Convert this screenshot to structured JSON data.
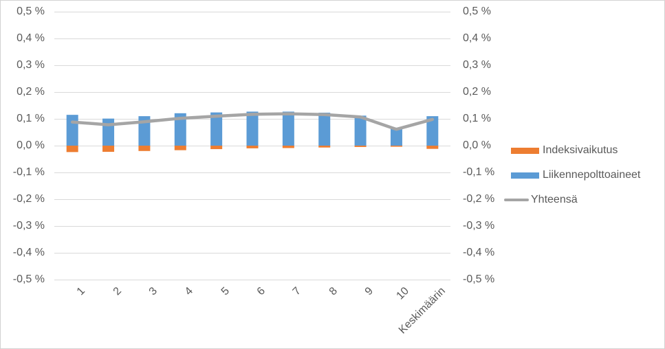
{
  "chart_data": {
    "type": "combo",
    "unit": "%",
    "categories": [
      "1",
      "2",
      "3",
      "4",
      "5",
      "6",
      "7",
      "8",
      "9",
      "10",
      "Keskimäärin"
    ],
    "series": [
      {
        "name": "Indeksivaikutus",
        "type": "bar",
        "color": "#ED7D31",
        "values": [
          -0.024,
          -0.023,
          -0.02,
          -0.017,
          -0.013,
          -0.01,
          -0.009,
          -0.007,
          -0.005,
          -0.004,
          -0.012
        ]
      },
      {
        "name": "Liikennepolttoaineet",
        "type": "bar",
        "color": "#5B9BD5",
        "values": [
          0.115,
          0.101,
          0.11,
          0.121,
          0.124,
          0.127,
          0.127,
          0.123,
          0.112,
          0.067,
          0.11
        ]
      },
      {
        "name": "Yhteensä",
        "type": "line",
        "color": "#A5A5A5",
        "values": [
          0.088,
          0.078,
          0.089,
          0.102,
          0.11,
          0.117,
          0.119,
          0.116,
          0.107,
          0.061,
          0.098
        ]
      }
    ],
    "title": "",
    "xlabel": "",
    "ylabel": "",
    "ylim": [
      -0.5,
      0.5
    ],
    "y_tick_step": 0.1,
    "y_ticks": [
      "0,5 %",
      "0,4 %",
      "0,3 %",
      "0,2 %",
      "0,1 %",
      "0,0 %",
      "-0,1 %",
      "-0,2 %",
      "-0,3 %",
      "-0,4 %",
      "-0,5 %"
    ],
    "y_axis_sides": [
      "left",
      "right"
    ],
    "grid": true,
    "legend_position": "right-middle",
    "colors": {
      "grid": "#D9D9D9",
      "axis_text": "#595959",
      "background": "#FFFFFF",
      "border": "#D2D2D2"
    }
  }
}
